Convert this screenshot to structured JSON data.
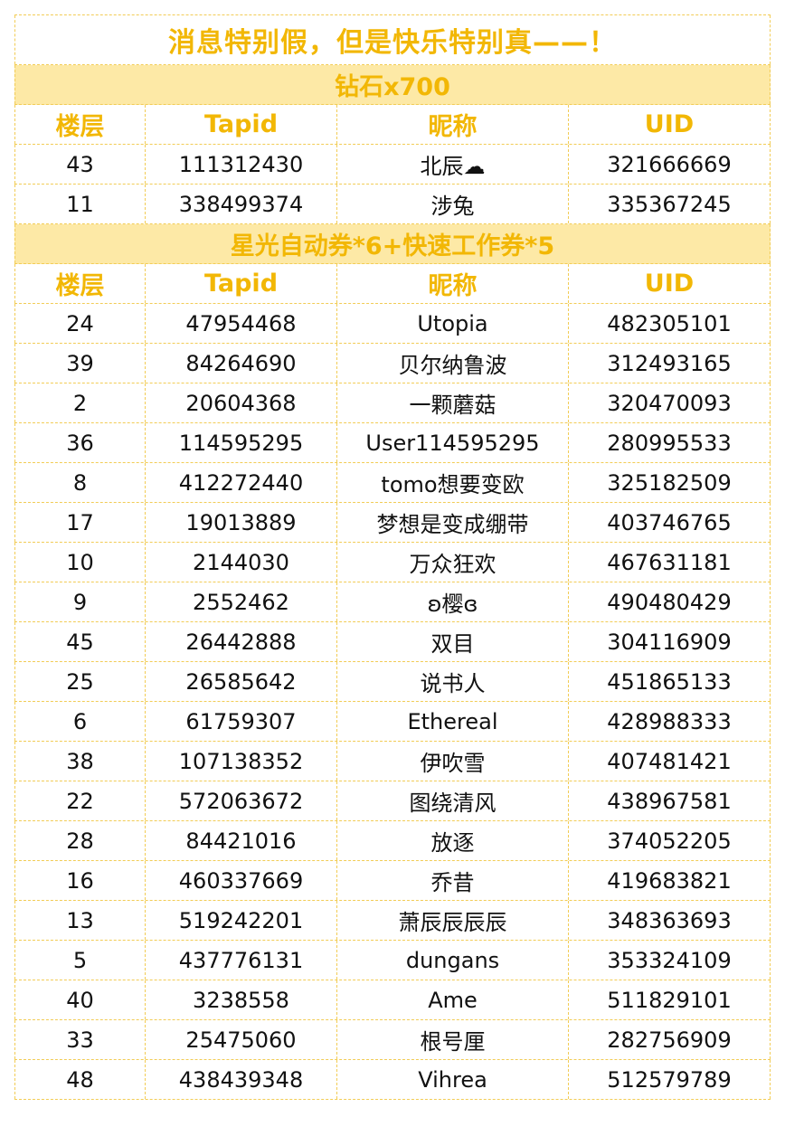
{
  "title": "消息特别假，但是快乐特别真——！",
  "columns": [
    "楼层",
    "Tapid",
    "昵称",
    "UID"
  ],
  "sections": [
    {
      "title": "钻石x700",
      "rows": [
        [
          "43",
          "111312430",
          "北辰☁",
          "321666669"
        ],
        [
          "11",
          "338499374",
          "涉兔",
          "335367245"
        ]
      ]
    },
    {
      "title": "星光自动券*6+快速工作券*5",
      "rows": [
        [
          "24",
          "47954468",
          "Utopia",
          "482305101"
        ],
        [
          "39",
          "84264690",
          "贝尔纳鲁波",
          "312493165"
        ],
        [
          "2",
          "20604368",
          "一颗蘑菇",
          "320470093"
        ],
        [
          "36",
          "114595295",
          "User114595295",
          "280995533"
        ],
        [
          "8",
          "412272440",
          "tomo想要变欧",
          "325182509"
        ],
        [
          "17",
          "19013889",
          "梦想是变成绷带",
          "403746765"
        ],
        [
          "10",
          "2144030",
          "万众狂欢",
          "467631181"
        ],
        [
          "9",
          "2552462",
          "ʚ樱ɞ",
          "490480429"
        ],
        [
          "45",
          "26442888",
          "双目",
          "304116909"
        ],
        [
          "25",
          "26585642",
          "说书人",
          "451865133"
        ],
        [
          "6",
          "61759307",
          "Ethereal",
          "428988333"
        ],
        [
          "38",
          "107138352",
          "伊吹雪",
          "407481421"
        ],
        [
          "22",
          "572063672",
          "图绕清风",
          "438967581"
        ],
        [
          "28",
          "84421016",
          "放逐",
          "374052205"
        ],
        [
          "16",
          "460337669",
          "乔昔",
          "419683821"
        ],
        [
          "13",
          "519242201",
          "萧辰辰辰辰",
          "348363693"
        ],
        [
          "5",
          "437776131",
          "dungans",
          "353324109"
        ],
        [
          "40",
          "3238558",
          "Ame",
          "511829101"
        ],
        [
          "33",
          "25475060",
          "根号厘",
          "282756909"
        ],
        [
          "48",
          "438439348",
          "Vihrea",
          "512579789"
        ]
      ]
    }
  ]
}
